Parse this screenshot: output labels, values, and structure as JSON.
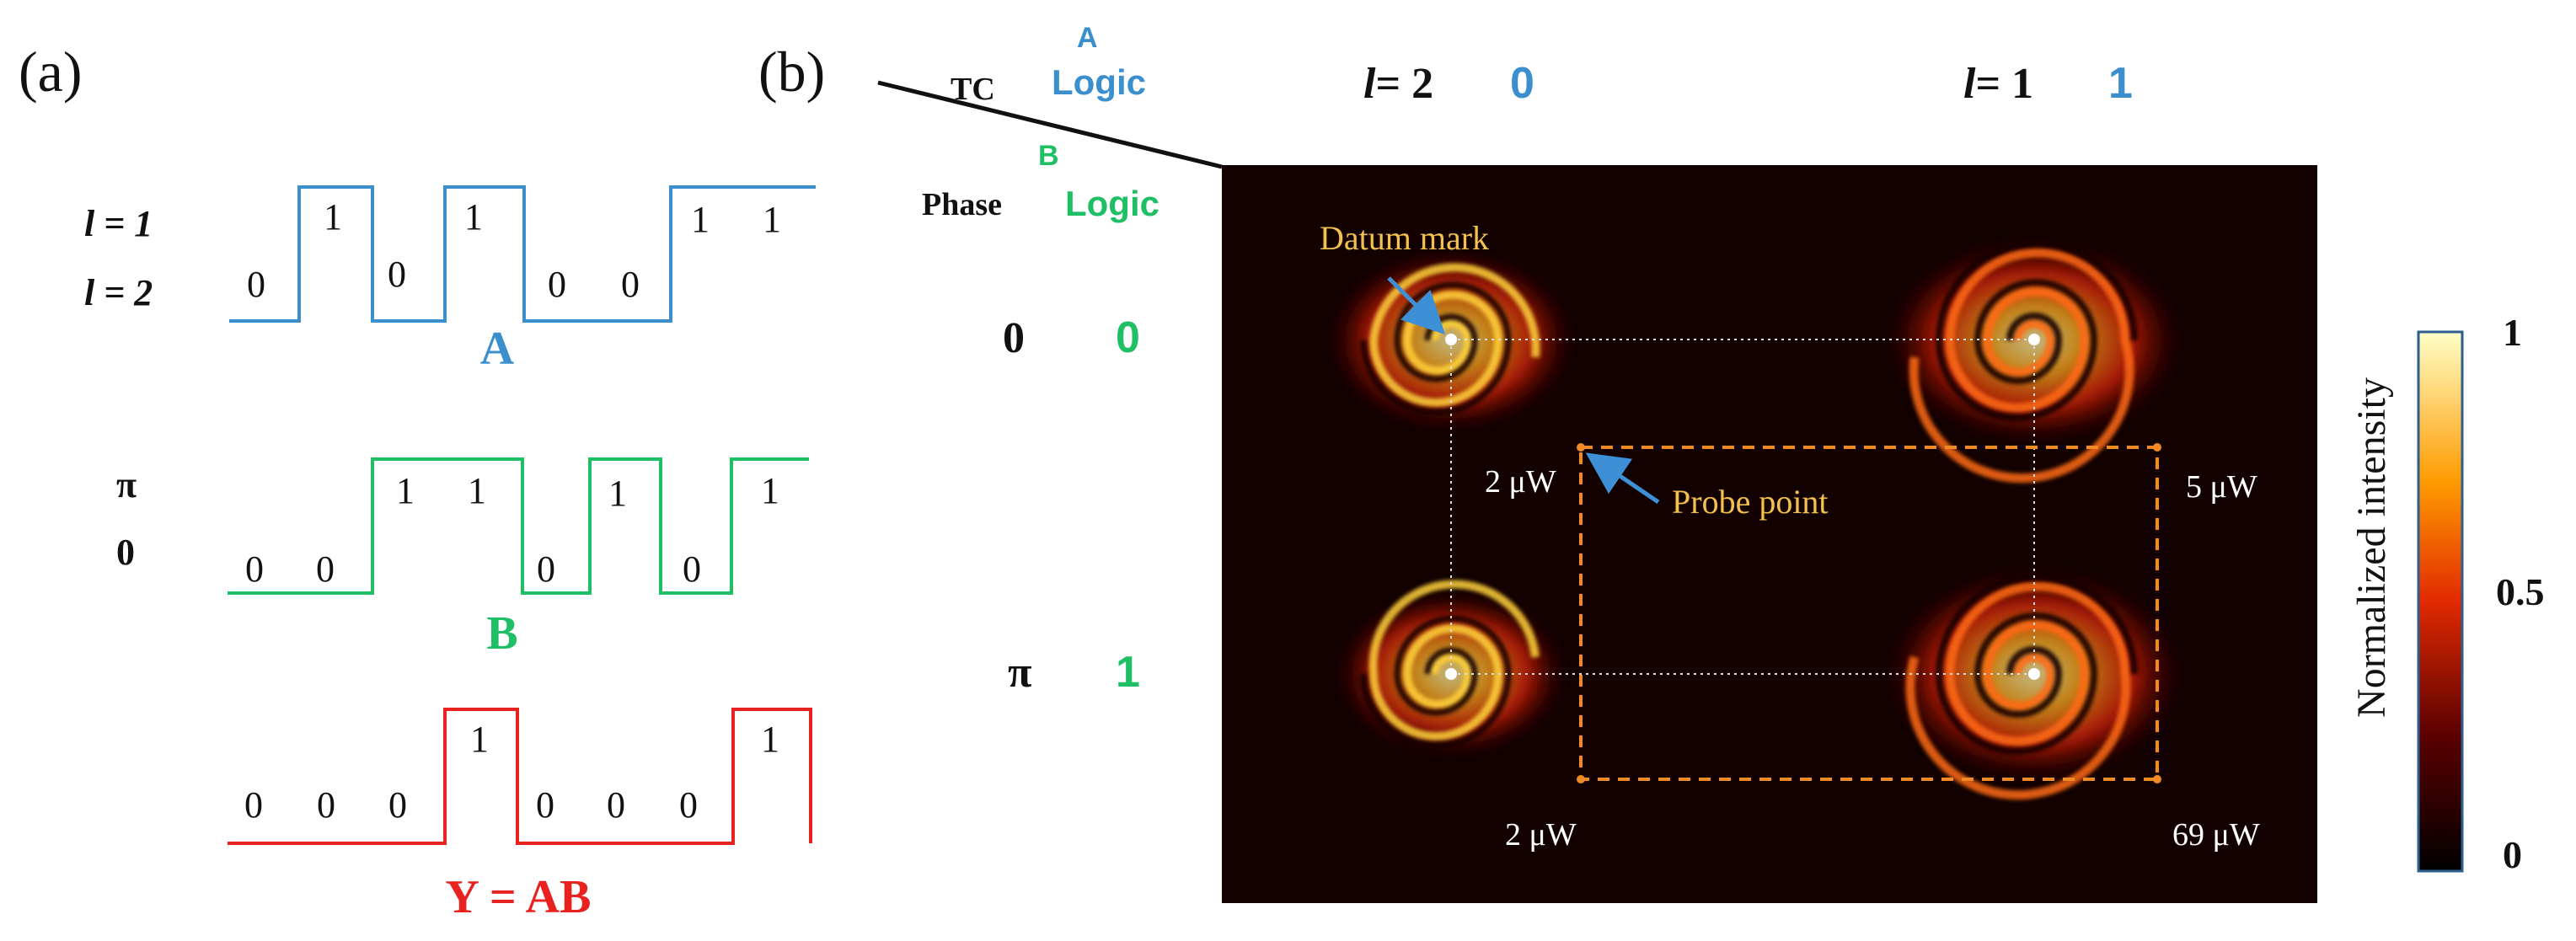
{
  "panel_a": {
    "label": "(a)",
    "levels_a": {
      "top": "l = 1",
      "bottom": "l = 2"
    },
    "levels_b": {
      "top": "π",
      "bottom": "0"
    },
    "signals": [
      {
        "name": "A",
        "bits": [
          "0",
          "1",
          "0",
          "1",
          "0",
          "0",
          "1",
          "1"
        ],
        "color": "#3a8fcc"
      },
      {
        "name": "B",
        "bits": [
          "0",
          "0",
          "1",
          "1",
          "0",
          "1",
          "0",
          "1"
        ],
        "color": "#1fbf66"
      },
      {
        "name": "Y = AB",
        "bits": [
          "0",
          "0",
          "0",
          "1",
          "0",
          "0",
          "0",
          "1"
        ],
        "color": "#e8221f"
      }
    ]
  },
  "panel_b": {
    "label": "(b)",
    "header": {
      "tc": "TC",
      "a_letter": "A",
      "a_logic": "Logic",
      "phase": "Phase",
      "b_letter": "B",
      "b_logic": "Logic"
    },
    "columns": [
      {
        "tc": "= 2",
        "tc_var": "l",
        "logic": "0"
      },
      {
        "tc": "= 1",
        "tc_var": "l",
        "logic": "1"
      }
    ],
    "rows": [
      {
        "phase": "0",
        "logic": "0"
      },
      {
        "phase": "π",
        "logic": "1"
      }
    ],
    "powers": {
      "top_left": "2 μW",
      "top_right": "5 μW",
      "bottom_left": "2 μW",
      "bottom_right": "69 μW"
    },
    "annotations": {
      "datum": "Datum mark",
      "probe": "Probe point"
    },
    "colorbar": {
      "label": "Normalized intensity",
      "ticks": [
        "1",
        "0.5",
        "0"
      ]
    },
    "colors": {
      "logic_a": "#3a8fcc",
      "logic_b": "#1fbf66",
      "annotation": "#f2c14e",
      "arrow": "#3d8fd6",
      "probe_box": "#f08a24"
    }
  }
}
